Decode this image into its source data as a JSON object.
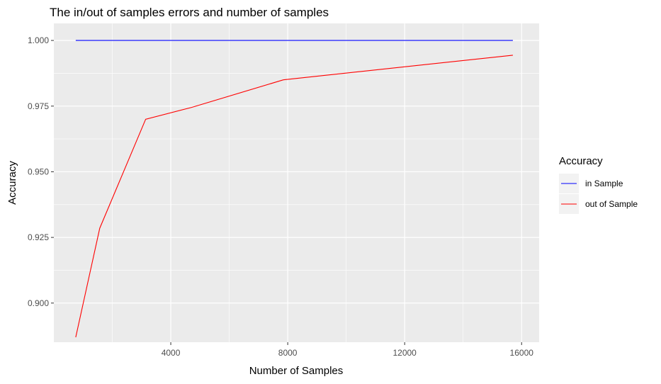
{
  "chart_data": {
    "type": "line",
    "title": "The in/out of samples errors and number of samples",
    "xlabel": "Number of Samples",
    "ylabel": "Accuracy",
    "xlim": [
      0,
      16600
    ],
    "ylim": [
      0.8851,
      1.0065
    ],
    "xticks": [
      {
        "value": 4000,
        "label": "4000"
      },
      {
        "value": 8000,
        "label": "8000"
      },
      {
        "value": 12000,
        "label": "12000"
      },
      {
        "value": 16000,
        "label": "16000"
      }
    ],
    "yticks": [
      {
        "value": 0.9,
        "label": "0.900"
      },
      {
        "value": 0.925,
        "label": "0.925"
      },
      {
        "value": 0.95,
        "label": "0.950"
      },
      {
        "value": 0.975,
        "label": "0.975"
      },
      {
        "value": 1.0,
        "label": "1.000"
      }
    ],
    "grid": true,
    "legend_title": "Accuracy",
    "legend_position": "right",
    "series": [
      {
        "name": "in Sample",
        "color": "#0000ff",
        "points": [
          {
            "x": 750,
            "y": 1.0
          },
          {
            "x": 1570,
            "y": 1.0
          },
          {
            "x": 3140,
            "y": 1.0
          },
          {
            "x": 4710,
            "y": 1.0
          },
          {
            "x": 7850,
            "y": 1.0
          },
          {
            "x": 15700,
            "y": 1.0
          }
        ]
      },
      {
        "name": "out of Sample",
        "color": "#ff0000",
        "points": [
          {
            "x": 750,
            "y": 0.887
          },
          {
            "x": 1570,
            "y": 0.9285
          },
          {
            "x": 3140,
            "y": 0.97
          },
          {
            "x": 4710,
            "y": 0.9745
          },
          {
            "x": 7850,
            "y": 0.985
          },
          {
            "x": 15700,
            "y": 0.9944
          }
        ]
      }
    ]
  }
}
